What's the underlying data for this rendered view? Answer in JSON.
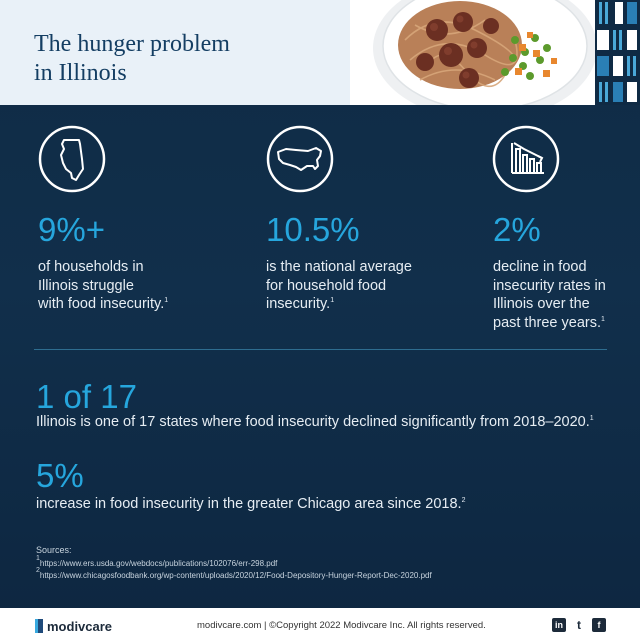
{
  "header": {
    "title_line1": "The hunger problem",
    "title_line2": "in Illinois"
  },
  "stats": [
    {
      "icon": "illinois-map-icon",
      "value": "9%+",
      "text_line1": "of households in",
      "text_line2": "Illinois struggle",
      "text_line3": "with food insecurity.",
      "footnote": "1"
    },
    {
      "icon": "usa-map-icon",
      "value": "10.5%",
      "text_line1": "is the national average",
      "text_line2": "for household food",
      "text_line3": "insecurity.",
      "footnote": "1"
    },
    {
      "icon": "declining-chart-icon",
      "value": "2%",
      "text_line1": "decline in food",
      "text_line2": "insecurity rates in",
      "text_line3": "Illinois over the",
      "text_line4": "past three years.",
      "footnote": "1"
    }
  ],
  "facts": [
    {
      "value": "1 of 17",
      "text": "Illinois is one of 17 states where food insecurity declined significantly from 2018–2020.",
      "footnote": "1"
    },
    {
      "value": "5%",
      "text": "increase in food insecurity in the greater Chicago area since 2018.",
      "footnote": "2"
    }
  ],
  "sources": {
    "label": "Sources:",
    "items": [
      {
        "num": "1",
        "url": "https://www.ers.usda.gov/webdocs/publications/102076/err-298.pdf"
      },
      {
        "num": "2",
        "url": "https://www.chicagosfoodbank.org/wp-content/uploads/2020/12/Food-Depository-Hunger-Report-Dec-2020.pdf"
      }
    ]
  },
  "footer": {
    "logo": "modivcare",
    "text": "modivcare.com  |  ©Copyright 2022 Modivcare Inc. All rights reserved.",
    "social": [
      {
        "name": "linkedin-icon",
        "glyph": "in"
      },
      {
        "name": "twitter-icon",
        "glyph": "t"
      },
      {
        "name": "facebook-icon",
        "glyph": "f"
      }
    ]
  },
  "colors": {
    "background": "#0f2a44",
    "accent": "#26a6dd",
    "title": "#143e63"
  }
}
